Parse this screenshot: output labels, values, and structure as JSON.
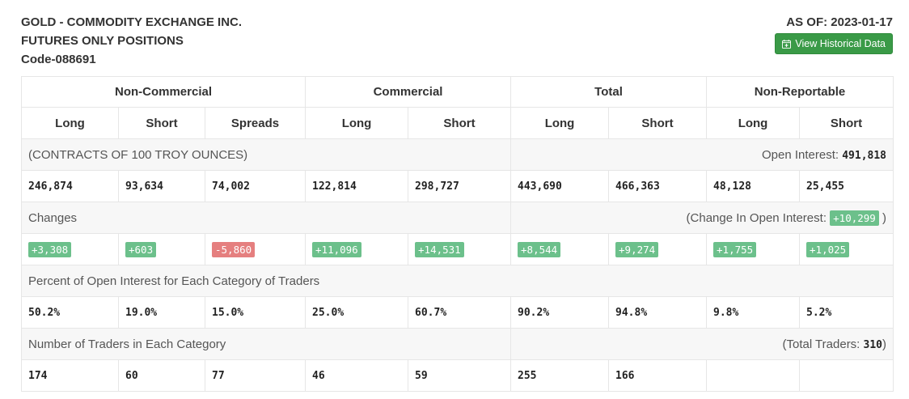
{
  "header": {
    "line1": "GOLD - COMMODITY EXCHANGE INC.",
    "line2": "FUTURES ONLY POSITIONS",
    "line3": "Code-088691",
    "as_of": "AS OF: 2023-01-17",
    "history_button": "View Historical Data",
    "history_icon": "calendar-plus-icon"
  },
  "colors": {
    "button_green": "#3a9a47",
    "positive_badge": "#6cc08b",
    "negative_badge": "#e57f7f",
    "row_shade": "#f7f7f7"
  },
  "table": {
    "groups": [
      "Non-Commercial",
      "Commercial",
      "Total",
      "Non-Reportable"
    ],
    "columns": [
      "Long",
      "Short",
      "Spreads",
      "Long",
      "Short",
      "Long",
      "Short",
      "Long",
      "Short"
    ],
    "contracts_note": "(CONTRACTS OF 100 TROY OUNCES)",
    "open_interest_label": "Open Interest:",
    "open_interest_value": "491,818",
    "positions": [
      "246,874",
      "93,634",
      "74,002",
      "122,814",
      "298,727",
      "443,690",
      "466,363",
      "48,128",
      "25,455"
    ],
    "changes_label": "Changes",
    "change_oi_prefix": "(Change In Open Interest:",
    "change_oi_value": "+10,299",
    "change_oi_suffix": ")",
    "changes": [
      "+3,308",
      "+603",
      "-5,860",
      "+11,096",
      "+14,531",
      "+8,544",
      "+9,274",
      "+1,755",
      "+1,025"
    ],
    "percent_label": "Percent of Open Interest for Each Category of Traders",
    "percents": [
      "50.2%",
      "19.0%",
      "15.0%",
      "25.0%",
      "60.7%",
      "90.2%",
      "94.8%",
      "9.8%",
      "5.2%"
    ],
    "traders_label": "Number of Traders in Each Category",
    "total_traders_prefix": "(Total Traders:",
    "total_traders_value": "310",
    "total_traders_suffix": ")",
    "traders": [
      "174",
      "60",
      "77",
      "46",
      "59",
      "255",
      "166",
      "",
      ""
    ]
  }
}
